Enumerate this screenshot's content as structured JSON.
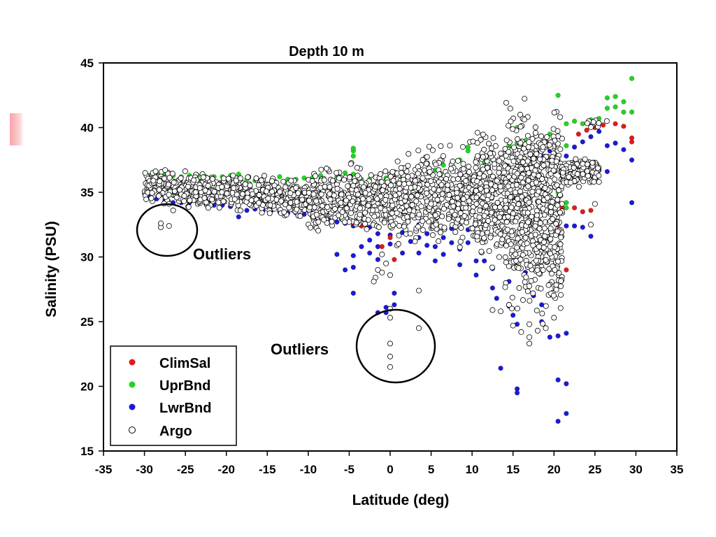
{
  "chart_data": {
    "type": "scatter",
    "title": "Depth 10 m",
    "xlabel": "Latitude (deg)",
    "ylabel": "Salinity (PSU)",
    "xlim": [
      -35,
      35
    ],
    "ylim": [
      15,
      45
    ],
    "xticks": [
      -35,
      -30,
      -25,
      -20,
      -15,
      -10,
      -5,
      0,
      5,
      10,
      15,
      20,
      25,
      30,
      35
    ],
    "yticks": [
      15,
      20,
      25,
      30,
      35,
      40,
      45
    ],
    "grid": false,
    "legend_position": "bottom-left",
    "colors": {
      "ClimSal": "#e01b1b",
      "UprBnd": "#22d322",
      "LwrBnd": "#1a1ad8",
      "Argo": "#ffffff"
    },
    "series": [
      {
        "name": "ClimSal",
        "marker": "filled-circle",
        "points": [
          [
            -4.5,
            32.6
          ],
          [
            -3.5,
            32.4
          ],
          [
            -3,
            32.5
          ],
          [
            -1,
            30.8
          ],
          [
            0,
            31.5
          ],
          [
            0.5,
            29.8
          ],
          [
            17.5,
            38.5
          ],
          [
            17.5,
            38
          ],
          [
            19,
            38.5
          ],
          [
            20.5,
            32.5
          ],
          [
            21,
            33.8
          ],
          [
            21.5,
            29
          ],
          [
            22.5,
            33.8
          ],
          [
            23.5,
            33.5
          ],
          [
            24.5,
            33.6
          ],
          [
            23,
            39.5
          ],
          [
            24,
            39.8
          ],
          [
            25,
            40
          ],
          [
            26,
            40.2
          ],
          [
            27.5,
            40.3
          ],
          [
            28.5,
            40.1
          ],
          [
            29.5,
            39.2
          ],
          [
            29.5,
            38.9
          ]
        ]
      },
      {
        "name": "UprBnd",
        "marker": "filled-circle",
        "points": [
          [
            -29.5,
            36.3
          ],
          [
            -28.5,
            36.4
          ],
          [
            -27.5,
            36.4
          ],
          [
            -26.5,
            36.3
          ],
          [
            -25.5,
            36.2
          ],
          [
            -24.5,
            36.3
          ],
          [
            -23.5,
            36.3
          ],
          [
            -22.5,
            36.2
          ],
          [
            -21.5,
            36.2
          ],
          [
            -20.5,
            36.2
          ],
          [
            -19.5,
            36.3
          ],
          [
            -18.5,
            36.4
          ],
          [
            -17.5,
            36
          ],
          [
            -16.5,
            35.9
          ],
          [
            -15.5,
            35.8
          ],
          [
            -14.5,
            35.8
          ],
          [
            -13.5,
            36.2
          ],
          [
            -12.5,
            36
          ],
          [
            -11.5,
            36
          ],
          [
            -10.5,
            36.1
          ],
          [
            -9.5,
            36.1
          ],
          [
            -8.5,
            36.3
          ],
          [
            -7.5,
            36.6
          ],
          [
            -6.5,
            36.2
          ],
          [
            -5.5,
            36.5
          ],
          [
            -4.5,
            36.4
          ],
          [
            -4.5,
            37.8
          ],
          [
            -4.5,
            38.2
          ],
          [
            -4.5,
            38.4
          ],
          [
            -3.5,
            36
          ],
          [
            -2.5,
            36
          ],
          [
            -1.5,
            36
          ],
          [
            -0.5,
            36.1
          ],
          [
            0.5,
            36.1
          ],
          [
            1.5,
            36.2
          ],
          [
            2.5,
            36.2
          ],
          [
            3.5,
            36.6
          ],
          [
            4.5,
            36.7
          ],
          [
            5.5,
            36.7
          ],
          [
            6.5,
            37.1
          ],
          [
            7.5,
            37.2
          ],
          [
            8.5,
            37.5
          ],
          [
            9.5,
            38.2
          ],
          [
            9.5,
            38.5
          ],
          [
            10.5,
            37.5
          ],
          [
            11.5,
            37.3
          ],
          [
            12.5,
            37.5
          ],
          [
            13.5,
            37.6
          ],
          [
            14.5,
            37.8
          ],
          [
            14.5,
            38.6
          ],
          [
            15.5,
            38.8
          ],
          [
            15.5,
            40
          ],
          [
            16.5,
            39
          ],
          [
            17.5,
            39.2
          ],
          [
            18.5,
            39.3
          ],
          [
            19.5,
            39.5
          ],
          [
            20.5,
            42.5
          ],
          [
            21.5,
            40.3
          ],
          [
            21.5,
            38.6
          ],
          [
            22.5,
            40.5
          ],
          [
            23.5,
            40.3
          ],
          [
            24.5,
            40.6
          ],
          [
            25.5,
            40.7
          ],
          [
            26.5,
            42.3
          ],
          [
            26.5,
            41.5
          ],
          [
            27.5,
            42.4
          ],
          [
            27.5,
            41.6
          ],
          [
            28.5,
            42
          ],
          [
            28.5,
            41.2
          ],
          [
            29.5,
            43.8
          ],
          [
            29.5,
            41.2
          ],
          [
            20.5,
            35
          ],
          [
            21.5,
            33.8
          ],
          [
            21.5,
            34.2
          ],
          [
            22.5,
            36.8
          ],
          [
            23.5,
            37.3
          ],
          [
            24.5,
            37.3
          ]
        ]
      },
      {
        "name": "LwrBnd",
        "marker": "filled-circle",
        "points": [
          [
            -29.5,
            34.7
          ],
          [
            -28.5,
            34.5
          ],
          [
            -27.5,
            34.4
          ],
          [
            -26.5,
            34.2
          ],
          [
            -25.5,
            34.2
          ],
          [
            -24.5,
            34.2
          ],
          [
            -23.5,
            34.1
          ],
          [
            -22.5,
            34.1
          ],
          [
            -21.5,
            34.0
          ],
          [
            -20.5,
            34.0
          ],
          [
            -19.5,
            33.9
          ],
          [
            -18.5,
            33.1
          ],
          [
            -17.5,
            33.6
          ],
          [
            -16.5,
            33.7
          ],
          [
            -15.5,
            33.6
          ],
          [
            -14.5,
            33.6
          ],
          [
            -13.5,
            33.5
          ],
          [
            -12.5,
            33.4
          ],
          [
            -11.5,
            33.4
          ],
          [
            -10.5,
            33.3
          ],
          [
            -9.5,
            33.2
          ],
          [
            -8.5,
            33.1
          ],
          [
            -7.5,
            32.9
          ],
          [
            -6.5,
            32.7
          ],
          [
            -6.5,
            30.2
          ],
          [
            -5.5,
            32.6
          ],
          [
            -5.5,
            29
          ],
          [
            -4.5,
            32.4
          ],
          [
            -4.5,
            30.1
          ],
          [
            -4.5,
            29.2
          ],
          [
            -4.5,
            27.2
          ],
          [
            -3.5,
            32.4
          ],
          [
            -3.5,
            30.8
          ],
          [
            -2.5,
            32.3
          ],
          [
            -2.5,
            31.3
          ],
          [
            -2.5,
            30.3
          ],
          [
            -1.5,
            31.8
          ],
          [
            -1.5,
            30.8
          ],
          [
            -1.5,
            29.8
          ],
          [
            -1.5,
            25.7
          ],
          [
            -0.5,
            26.1
          ],
          [
            -0.5,
            25.7
          ],
          [
            0,
            31.7
          ],
          [
            0,
            31.0
          ],
          [
            0.5,
            27.2
          ],
          [
            0.5,
            26.3
          ],
          [
            1.5,
            31.9
          ],
          [
            1.5,
            30.3
          ],
          [
            2.5,
            31.2
          ],
          [
            3.5,
            32.5
          ],
          [
            3.5,
            31.5
          ],
          [
            3.5,
            30.3
          ],
          [
            4.5,
            31.8
          ],
          [
            4.5,
            30.9
          ],
          [
            5.5,
            30.8
          ],
          [
            5.5,
            29.7
          ],
          [
            6.5,
            31.5
          ],
          [
            6.5,
            30.2
          ],
          [
            7.5,
            32.2
          ],
          [
            7.5,
            31.1
          ],
          [
            8.5,
            30.6
          ],
          [
            8.5,
            29.4
          ],
          [
            9.5,
            32.1
          ],
          [
            9.5,
            31.1
          ],
          [
            10.5,
            29.7
          ],
          [
            10.5,
            28.6
          ],
          [
            11.5,
            31.5
          ],
          [
            11.5,
            29.7
          ],
          [
            12.5,
            29.1
          ],
          [
            12.5,
            27.6
          ],
          [
            13,
            26.8
          ],
          [
            13.5,
            21.4
          ],
          [
            14.5,
            28.1
          ],
          [
            14.5,
            26.2
          ],
          [
            15,
            25.5
          ],
          [
            15.5,
            24.8
          ],
          [
            15.5,
            19.8
          ],
          [
            15.5,
            19.5
          ],
          [
            16.5,
            28.8
          ],
          [
            17.5,
            27.0
          ],
          [
            18.5,
            26.3
          ],
          [
            18.5,
            25.0
          ],
          [
            19.5,
            23.8
          ],
          [
            20.5,
            23.9
          ],
          [
            20.5,
            20.5
          ],
          [
            20.5,
            17.3
          ],
          [
            21.5,
            20.2
          ],
          [
            21.5,
            17.9
          ],
          [
            21.5,
            24.1
          ],
          [
            21.5,
            32.4
          ],
          [
            22.5,
            32.4
          ],
          [
            22.5,
            35.8
          ],
          [
            23.5,
            32.3
          ],
          [
            23.5,
            36.0
          ],
          [
            24.5,
            31.6
          ],
          [
            24.5,
            36.3
          ],
          [
            25.5,
            36.7
          ],
          [
            26.5,
            36.6
          ],
          [
            26.5,
            38.6
          ],
          [
            27.5,
            38.8
          ],
          [
            28.5,
            38.3
          ],
          [
            29.5,
            37.5
          ],
          [
            29.5,
            34.2
          ],
          [
            21.5,
            37.8
          ],
          [
            20.5,
            37.5
          ],
          [
            19.5,
            38.2
          ],
          [
            18.5,
            37.8
          ],
          [
            22.5,
            38.5
          ],
          [
            23.5,
            38.9
          ],
          [
            24.5,
            39.3
          ],
          [
            25.5,
            39.7
          ]
        ]
      },
      {
        "name": "Argo",
        "marker": "open-circle",
        "bands": [
          {
            "x_range": [
              -30,
              -20
            ],
            "center_start": 35.6,
            "center_end": 35.0,
            "spread": 0.55,
            "count": 360
          },
          {
            "x_range": [
              -20,
              -10
            ],
            "center_start": 35.0,
            "center_end": 34.4,
            "spread": 0.6,
            "count": 330
          },
          {
            "x_range": [
              -10,
              0
            ],
            "center_start": 34.4,
            "center_end": 34.4,
            "spread": 1.1,
            "count": 380
          },
          {
            "x_range": [
              0,
              10
            ],
            "center_start": 34.4,
            "center_end": 35.0,
            "spread": 1.6,
            "count": 440
          },
          {
            "x_range": [
              10,
              14
            ],
            "center_start": 35.0,
            "center_end": 34.5,
            "spread": 2.1,
            "count": 260
          },
          {
            "x_range": [
              14,
              21
            ],
            "center_start": 34.0,
            "center_end": 33.0,
            "spread": 3.3,
            "count": 640
          },
          {
            "x_range": [
              21,
              25.5
            ],
            "center_start": 36.3,
            "center_end": 36.8,
            "spread": 0.45,
            "count": 180
          },
          {
            "x_range": [
              15,
              20.5
            ],
            "center_start": 37.0,
            "center_end": 38.5,
            "spread": 0.9,
            "count": 90
          },
          {
            "x_range": [
              24,
              26.5
            ],
            "center_start": 40.3,
            "center_end": 40.5,
            "spread": 0.2,
            "count": 10
          }
        ],
        "points": [
          [
            -28,
            32.3
          ],
          [
            -28,
            32.6
          ],
          [
            -27,
            32.4
          ],
          [
            -27,
            34.1
          ],
          [
            -26.5,
            33.6
          ],
          [
            -1,
            30.2
          ],
          [
            -0.5,
            29.5
          ],
          [
            -1.5,
            29.0
          ],
          [
            -1.8,
            28.4
          ],
          [
            -2,
            28.1
          ],
          [
            -1,
            28.8
          ],
          [
            0,
            28.6
          ],
          [
            0,
            26.0
          ],
          [
            0,
            25.3
          ],
          [
            0,
            23.3
          ],
          [
            0,
            22.3
          ],
          [
            0,
            21.5
          ],
          [
            3.5,
            27.4
          ],
          [
            3.5,
            24.5
          ],
          [
            12.5,
            25.9
          ],
          [
            13.5,
            25.8
          ],
          [
            14.5,
            26.3
          ],
          [
            15,
            24.7
          ],
          [
            16,
            24.2
          ],
          [
            17,
            24.8
          ],
          [
            17,
            23.8
          ],
          [
            17,
            23.3
          ],
          [
            18,
            24.3
          ],
          [
            19,
            24.5
          ],
          [
            20,
            25.3
          ],
          [
            23.5,
            37.2
          ],
          [
            24.5,
            32.5
          ],
          [
            25,
            34.1
          ],
          [
            25.5,
            35.8
          ]
        ]
      }
    ],
    "annotations": [
      "Outliers",
      "Outliers"
    ]
  }
}
